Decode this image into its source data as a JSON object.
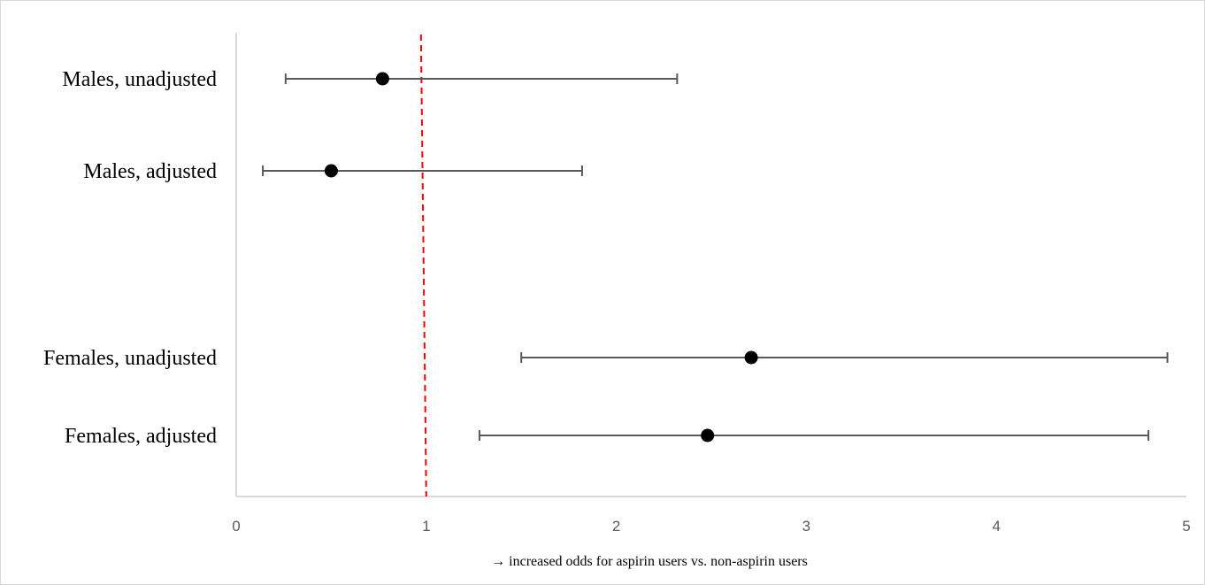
{
  "chart_data": {
    "type": "forest",
    "categories": [
      "Males, unadjusted",
      "Males, adjusted",
      "Females, unadjusted",
      "Females, adjusted"
    ],
    "estimates": [
      0.77,
      0.5,
      2.71,
      2.48
    ],
    "ci_lower": [
      0.26,
      0.14,
      1.5,
      1.28
    ],
    "ci_upper": [
      2.32,
      1.82,
      4.9,
      4.8
    ],
    "xlim": [
      0,
      5
    ],
    "xticks": [
      0,
      1,
      2,
      3,
      4,
      5
    ],
    "xticklabels": [
      "0",
      "1",
      "2",
      "3",
      "4",
      "5"
    ],
    "reference_line": {
      "x": 1,
      "style": "dashed",
      "color": "#ff0000"
    },
    "xlabel": "→  increased odds for aspirin users vs. non-aspirin users",
    "title": "",
    "grid": false,
    "colors": {
      "point": "#000000",
      "whisker": "#595959",
      "axis": "#d9d9d9"
    }
  }
}
